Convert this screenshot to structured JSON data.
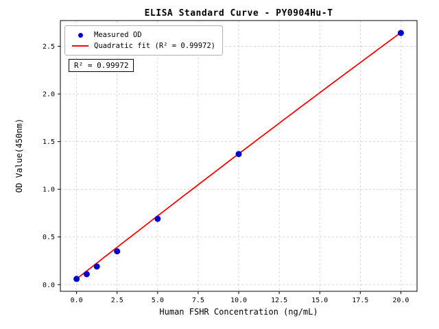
{
  "chart_data": {
    "type": "scatter",
    "title": "ELISA Standard Curve - PY0904Hu-T",
    "xlabel": "Human FSHR Concentration (ng/mL)",
    "ylabel": "OD Value(450nm)",
    "xlim": [
      -1.0,
      21.0
    ],
    "ylim": [
      -0.07,
      2.77
    ],
    "x_ticks": [
      0.0,
      2.5,
      5.0,
      7.5,
      10.0,
      12.5,
      15.0,
      17.5,
      20.0
    ],
    "y_ticks": [
      0.0,
      0.5,
      1.0,
      1.5,
      2.0,
      2.5
    ],
    "grid": true,
    "legend_position": "upper left",
    "annotation": "R² = 0.99972",
    "colors": {
      "point": "#0000cd",
      "fit_line": "#ff0000",
      "grid": "#cccccc",
      "axis": "#000000"
    },
    "series": [
      {
        "name": "Measured OD",
        "type": "scatter",
        "color": "#0000cd",
        "x": [
          0.0,
          0.625,
          1.25,
          2.5,
          5.0,
          10.0,
          20.0
        ],
        "y": [
          0.06,
          0.11,
          0.19,
          0.35,
          0.69,
          1.37,
          2.64
        ]
      },
      {
        "name": "Quadratic fit (R² = 0.99972)",
        "type": "line",
        "color": "#ff0000",
        "fit": "quadratic",
        "r_squared": "0.99972",
        "coeffs": [
          0.06,
          0.1332,
          -0.0002
        ],
        "x_range": [
          0.0,
          20.0
        ]
      }
    ]
  }
}
